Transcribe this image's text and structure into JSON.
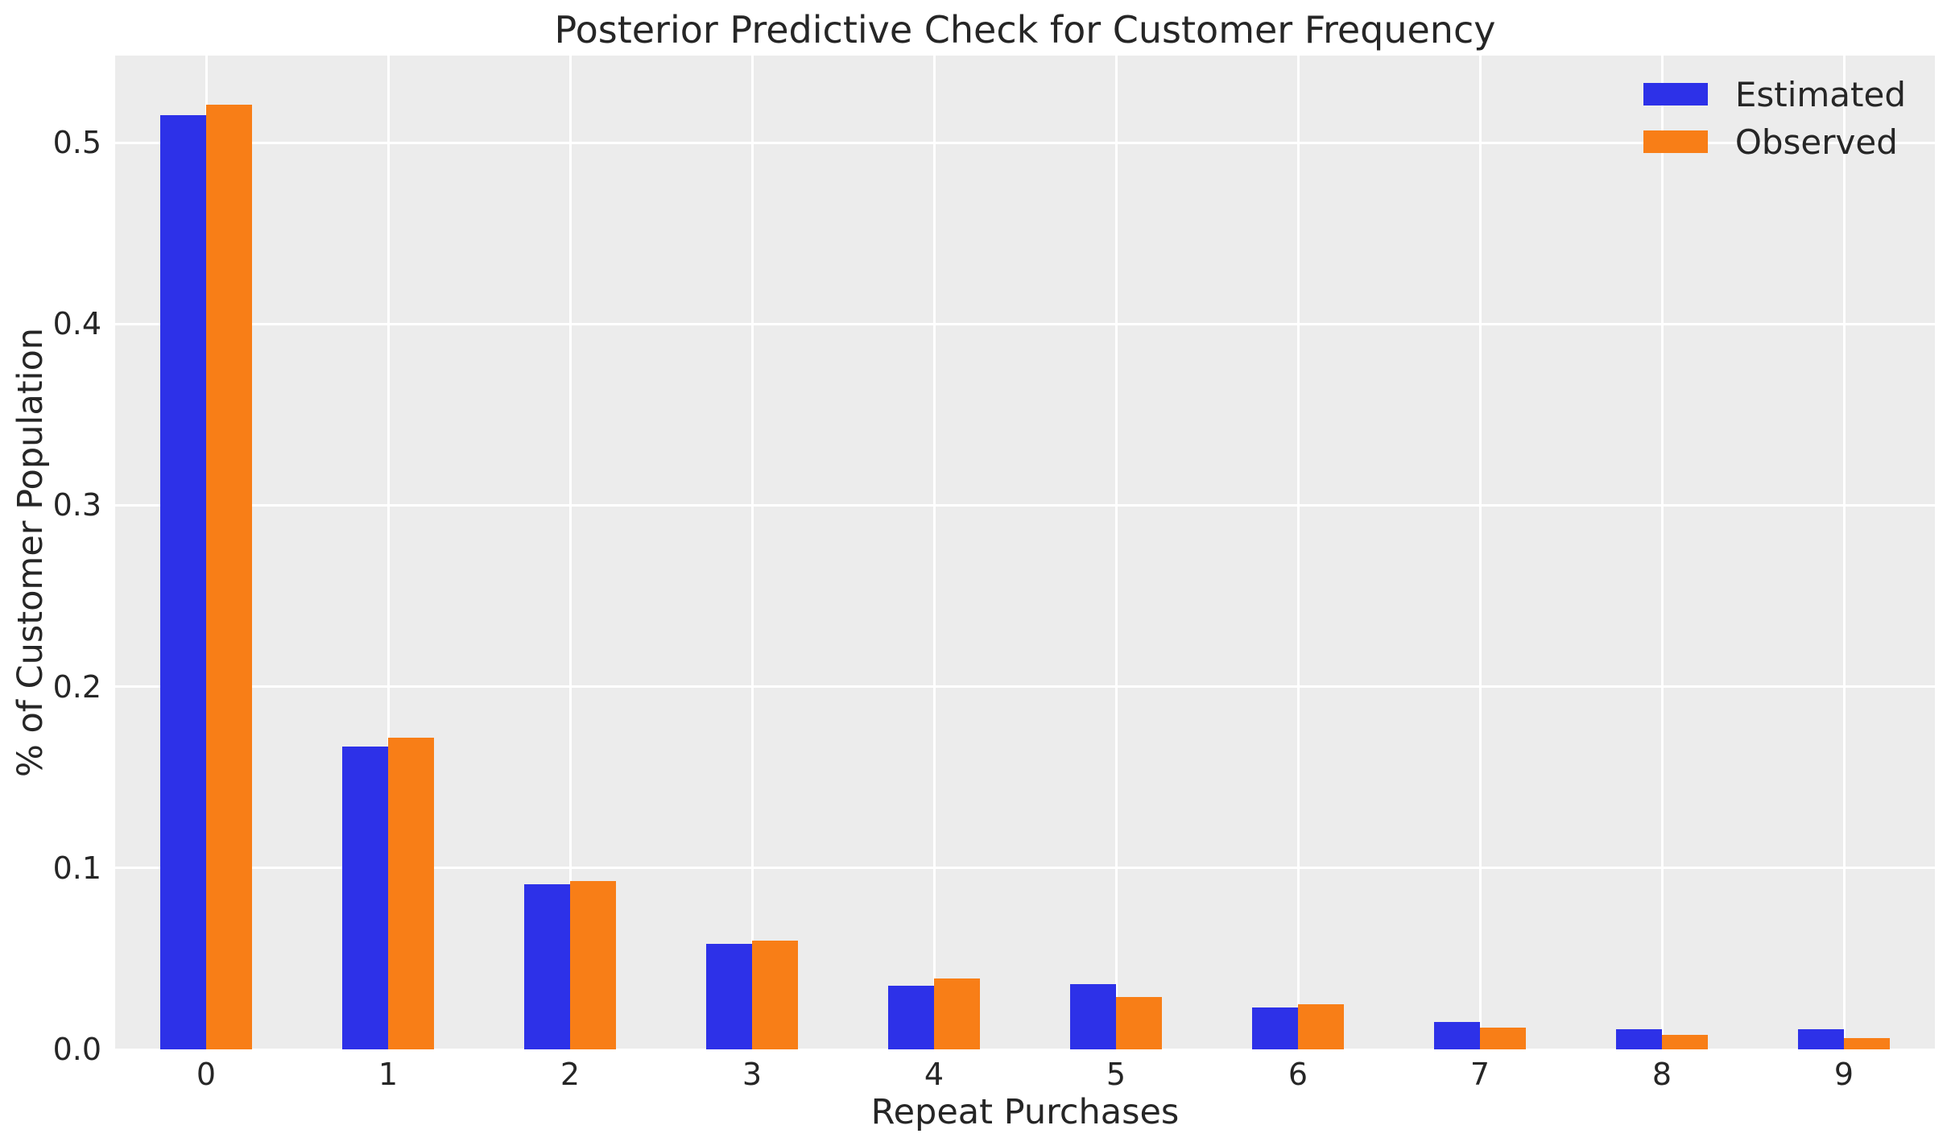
{
  "chart_data": {
    "type": "bar",
    "title": "Posterior Predictive Check for Customer Frequency",
    "xlabel": "Repeat Purchases",
    "ylabel": "% of Customer Population",
    "categories": [
      "0",
      "1",
      "2",
      "3",
      "4",
      "5",
      "6",
      "7",
      "8",
      "9"
    ],
    "series": [
      {
        "name": "Estimated",
        "color": "#2D31E8",
        "values": [
          0.515,
          0.167,
          0.091,
          0.058,
          0.035,
          0.036,
          0.023,
          0.015,
          0.011,
          0.011
        ]
      },
      {
        "name": "Observed",
        "color": "#F87E17",
        "values": [
          0.521,
          0.172,
          0.093,
          0.06,
          0.039,
          0.029,
          0.025,
          0.012,
          0.008,
          0.006
        ]
      }
    ],
    "ylim": [
      0,
      0.548
    ],
    "yticks": [
      0.0,
      0.1,
      0.2,
      0.3,
      0.4,
      0.5
    ],
    "ytick_labels": [
      "0.0",
      "0.1",
      "0.2",
      "0.3",
      "0.4",
      "0.5"
    ],
    "grid": true,
    "grid_color": "#ffffff",
    "plot_bg_color": "#ececec",
    "text_color": "#262626",
    "legend_position": "upper right",
    "legend_entries": [
      "Estimated",
      "Observed"
    ]
  }
}
